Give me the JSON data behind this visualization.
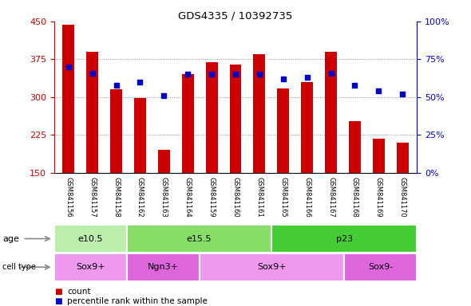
{
  "title": "GDS4335 / 10392735",
  "samples": [
    "GSM841156",
    "GSM841157",
    "GSM841158",
    "GSM841162",
    "GSM841163",
    "GSM841164",
    "GSM841159",
    "GSM841160",
    "GSM841161",
    "GSM841165",
    "GSM841166",
    "GSM841167",
    "GSM841168",
    "GSM841169",
    "GSM841170"
  ],
  "counts": [
    443,
    390,
    315,
    298,
    195,
    345,
    370,
    365,
    385,
    318,
    330,
    390,
    253,
    218,
    210
  ],
  "percentile_ranks": [
    70,
    66,
    58,
    60,
    51,
    65,
    65,
    65,
    65,
    62,
    63,
    66,
    58,
    54,
    52
  ],
  "ylim_left": [
    150,
    450
  ],
  "ylim_right": [
    0,
    100
  ],
  "yticks_left": [
    150,
    225,
    300,
    375,
    450
  ],
  "yticks_right": [
    0,
    25,
    50,
    75,
    100
  ],
  "bar_color": "#cc0000",
  "dot_color": "#0000cc",
  "bar_width": 0.5,
  "age_groups": [
    {
      "label": "e10.5",
      "start": 0,
      "end": 3,
      "color": "#bbeeaa"
    },
    {
      "label": "e15.5",
      "start": 3,
      "end": 9,
      "color": "#88dd66"
    },
    {
      "label": "p23",
      "start": 9,
      "end": 15,
      "color": "#44cc33"
    }
  ],
  "cell_type_groups": [
    {
      "label": "Sox9+",
      "start": 0,
      "end": 3,
      "color": "#ee99ee"
    },
    {
      "label": "Ngn3+",
      "start": 3,
      "end": 6,
      "color": "#dd66dd"
    },
    {
      "label": "Sox9+",
      "start": 6,
      "end": 12,
      "color": "#ee99ee"
    },
    {
      "label": "Sox9-",
      "start": 12,
      "end": 15,
      "color": "#dd66dd"
    }
  ],
  "grid_color": "#888888",
  "tick_label_color_left": "#cc0000",
  "tick_label_color_right": "#0000cc",
  "xticklabel_bg": "#cccccc",
  "plot_bg": "#ffffff",
  "fig_bg": "#ffffff"
}
